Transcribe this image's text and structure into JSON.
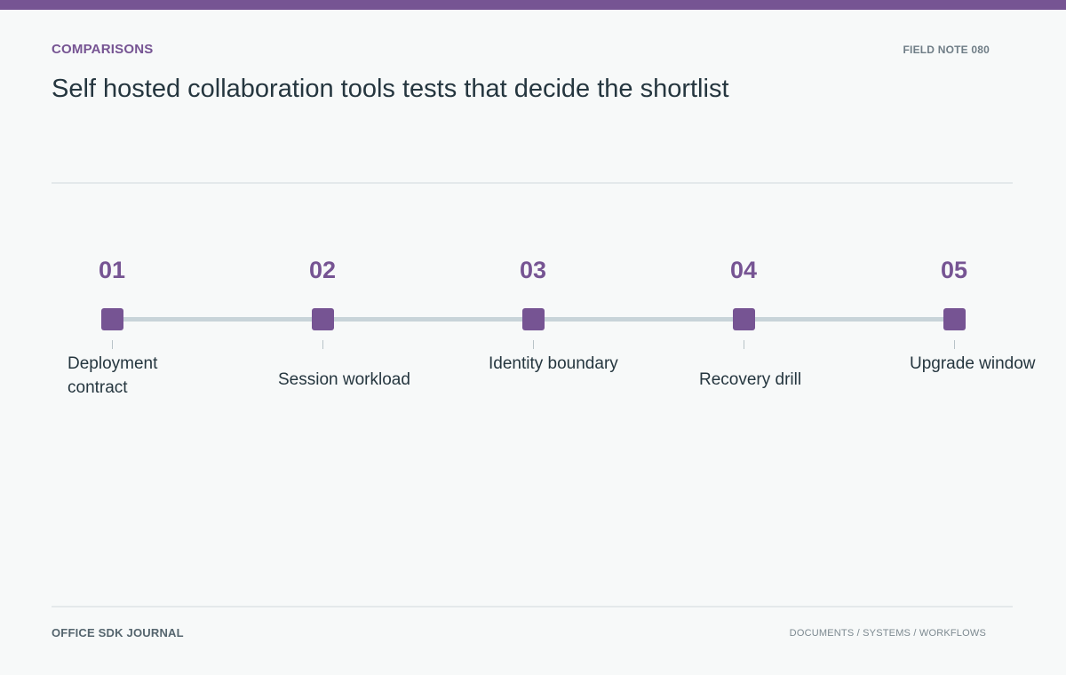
{
  "header": {
    "kicker": "COMPARISONS",
    "note_id": "FIELD NOTE 080",
    "title": "Self hosted collaboration tools tests that decide the shortlist"
  },
  "timeline": {
    "steps": [
      {
        "number": "01",
        "label": "Deployment contract"
      },
      {
        "number": "02",
        "label": "Session workload"
      },
      {
        "number": "03",
        "label": "Identity boundary"
      },
      {
        "number": "04",
        "label": "Recovery drill"
      },
      {
        "number": "05",
        "label": "Upgrade window"
      }
    ]
  },
  "footer": {
    "brand": "OFFICE SDK JOURNAL",
    "sections": "DOCUMENTS / SYSTEMS / WORKFLOWS"
  },
  "colors": {
    "accent": "#765493",
    "track": "#c8d4d9",
    "background": "#f7f9f9"
  }
}
